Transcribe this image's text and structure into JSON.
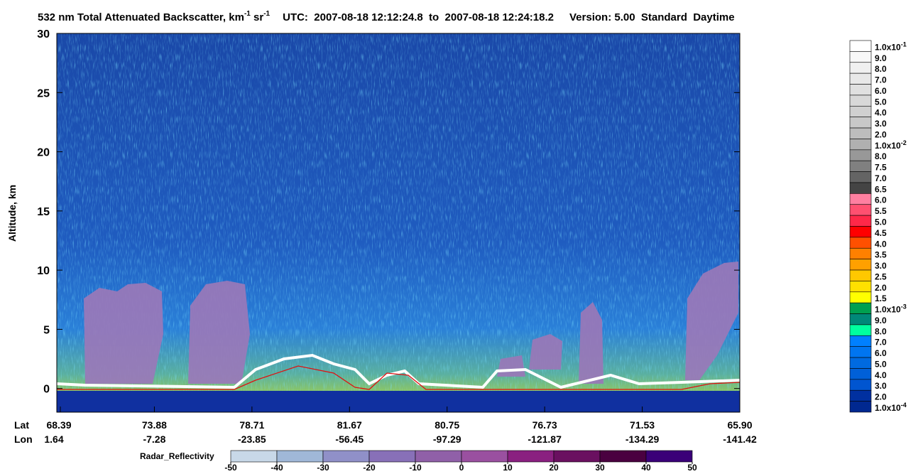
{
  "title": {
    "text": "532 nm Total Attenuated Backscatter, km",
    "sup1": "-1",
    "mid": " sr",
    "sup2": "-1",
    "utc": "UTC:  2007-08-18 12:12:24.8  to  2007-08-18 12:24:18.2",
    "version": "Version: 5.00  Standard  Daytime"
  },
  "plot": {
    "y_label": "Altitude, km",
    "ylim": [
      -2,
      30
    ],
    "yticks": [
      0,
      5,
      10,
      15,
      20,
      25,
      30
    ],
    "lat_label": "Lat",
    "lon_label": "Lon",
    "lat": [
      "68.39",
      "73.88",
      "78.71",
      "81.67",
      "80.75",
      "76.73",
      "71.53",
      "65.90"
    ],
    "lon": [
      "1.64",
      "-7.28",
      "-23.85",
      "-56.45",
      "-97.29",
      "-121.87",
      "-134.29",
      "-141.42"
    ]
  },
  "backscatter_scale": [
    {
      "label": "1.0x10",
      "exp": "-1",
      "color": "#ffffff"
    },
    {
      "label": "9.0",
      "color": "#f8f8f8"
    },
    {
      "label": "8.0",
      "color": "#f0f0f0"
    },
    {
      "label": "7.0",
      "color": "#e8e8e8"
    },
    {
      "label": "6.0",
      "color": "#e0e0e0"
    },
    {
      "label": "5.0",
      "color": "#d8d8d8"
    },
    {
      "label": "4.0",
      "color": "#d0d0d0"
    },
    {
      "label": "3.0",
      "color": "#c8c8c8"
    },
    {
      "label": "2.0",
      "color": "#bdbdbd"
    },
    {
      "label": "1.0x10",
      "exp": "-2",
      "color": "#b0b0b0"
    },
    {
      "label": "8.0",
      "color": "#989898"
    },
    {
      "label": "7.5",
      "color": "#808080"
    },
    {
      "label": "7.0",
      "color": "#646464"
    },
    {
      "label": "6.5",
      "color": "#444444"
    },
    {
      "label": "6.0",
      "color": "#ff7fa0"
    },
    {
      "label": "5.5",
      "color": "#ff5070"
    },
    {
      "label": "5.0",
      "color": "#ff2848"
    },
    {
      "label": "4.5",
      "color": "#ff0000"
    },
    {
      "label": "4.0",
      "color": "#ff5000"
    },
    {
      "label": "3.5",
      "color": "#ff8000"
    },
    {
      "label": "3.0",
      "color": "#ffa000"
    },
    {
      "label": "2.5",
      "color": "#ffc800"
    },
    {
      "label": "2.0",
      "color": "#ffe000"
    },
    {
      "label": "1.5",
      "color": "#ffff00"
    },
    {
      "label": "1.0x10",
      "exp": "-3",
      "color": "#00a050"
    },
    {
      "label": "9.0",
      "color": "#008878"
    },
    {
      "label": "8.0",
      "color": "#00ff9f"
    },
    {
      "label": "7.0",
      "color": "#0080ff"
    },
    {
      "label": "6.0",
      "color": "#0075f0"
    },
    {
      "label": "5.0",
      "color": "#006ae0"
    },
    {
      "label": "4.0",
      "color": "#0060d8"
    },
    {
      "label": "3.0",
      "color": "#0055d0"
    },
    {
      "label": "2.0",
      "color": "#0030a0"
    },
    {
      "label": "1.0x10",
      "exp": "-4",
      "color": "#002890"
    }
  ],
  "radar_scale": {
    "label": "Radar_Reflectivity",
    "ticks": [
      -50,
      -40,
      -30,
      -20,
      -10,
      0,
      10,
      20,
      30,
      40,
      50
    ],
    "colors": [
      "#c8d8e8",
      "#a0b8d8",
      "#9090c8",
      "#8870b8",
      "#9060a8",
      "#9a50a0",
      "#8a2080",
      "#6a1060",
      "#4a0040",
      "#3a0078"
    ]
  }
}
